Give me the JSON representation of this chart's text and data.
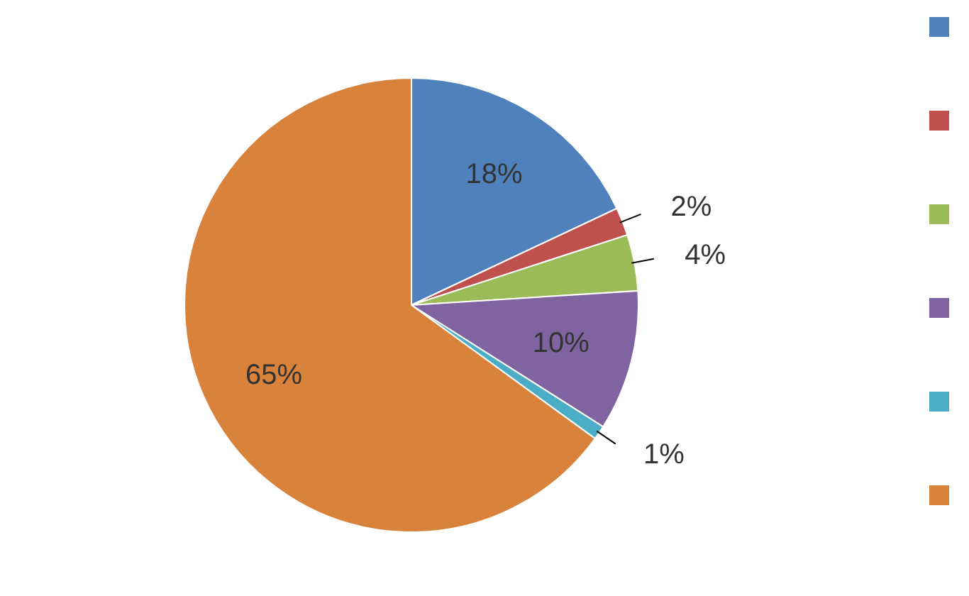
{
  "chart_data": {
    "type": "pie",
    "categories": [
      null,
      null,
      null,
      null,
      null,
      null
    ],
    "values": [
      18,
      2,
      4,
      10,
      1,
      65
    ],
    "value_labels": [
      "18%",
      "2%",
      "4%",
      "10%",
      "1%",
      "65%"
    ],
    "colors": [
      "#4f81bd",
      "#c0504d",
      "#9bbb59",
      "#8064a2",
      "#4bacc6",
      "#d9823b"
    ]
  }
}
